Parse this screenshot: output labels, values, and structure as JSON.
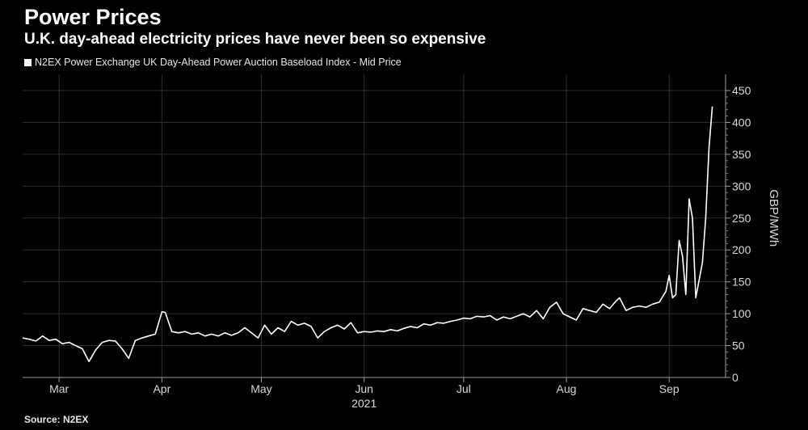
{
  "header": {
    "title": "Power Prices",
    "subtitle": "U.K. day-ahead electricity prices have never been so expensive"
  },
  "source": "Source: N2EX",
  "chart_data": {
    "type": "line",
    "legend": "N2EX Power Exchange UK Day-Ahead Power Auction Baseload Index - Mid Price",
    "legend_position": "top-left",
    "ylabel": "GBP/MWh",
    "year_label": "2021",
    "ylim": [
      0,
      450
    ],
    "yticks": [
      0,
      50,
      100,
      150,
      200,
      250,
      300,
      350,
      400,
      450
    ],
    "y_axis_side": "right",
    "grid": true,
    "xlim": [
      "2021-02-18",
      "2021-09-18"
    ],
    "month_ticks": [
      {
        "label": "Mar",
        "date": "2021-03-01"
      },
      {
        "label": "Apr",
        "date": "2021-04-01"
      },
      {
        "label": "May",
        "date": "2021-05-01"
      },
      {
        "label": "Jun",
        "date": "2021-06-01"
      },
      {
        "label": "Jul",
        "date": "2021-07-01"
      },
      {
        "label": "Aug",
        "date": "2021-08-01"
      },
      {
        "label": "Sep",
        "date": "2021-09-01"
      }
    ],
    "series": [
      {
        "name": "N2EX Power Exchange UK Day-Ahead Power Auction Baseload Index - Mid Price",
        "color": "#ffffff",
        "points": [
          [
            "2021-02-18",
            62
          ],
          [
            "2021-02-20",
            60
          ],
          [
            "2021-02-22",
            57
          ],
          [
            "2021-02-24",
            65
          ],
          [
            "2021-02-26",
            58
          ],
          [
            "2021-02-28",
            60
          ],
          [
            "2021-03-02",
            53
          ],
          [
            "2021-03-04",
            55
          ],
          [
            "2021-03-06",
            50
          ],
          [
            "2021-03-08",
            45
          ],
          [
            "2021-03-10",
            25
          ],
          [
            "2021-03-12",
            43
          ],
          [
            "2021-03-14",
            55
          ],
          [
            "2021-03-16",
            58
          ],
          [
            "2021-03-18",
            57
          ],
          [
            "2021-03-20",
            45
          ],
          [
            "2021-03-22",
            30
          ],
          [
            "2021-03-24",
            58
          ],
          [
            "2021-03-26",
            62
          ],
          [
            "2021-03-28",
            65
          ],
          [
            "2021-03-30",
            68
          ],
          [
            "2021-04-01",
            103
          ],
          [
            "2021-04-02",
            102
          ],
          [
            "2021-04-04",
            72
          ],
          [
            "2021-04-06",
            70
          ],
          [
            "2021-04-08",
            72
          ],
          [
            "2021-04-10",
            68
          ],
          [
            "2021-04-12",
            70
          ],
          [
            "2021-04-14",
            65
          ],
          [
            "2021-04-16",
            68
          ],
          [
            "2021-04-18",
            65
          ],
          [
            "2021-04-20",
            70
          ],
          [
            "2021-04-22",
            66
          ],
          [
            "2021-04-24",
            70
          ],
          [
            "2021-04-26",
            78
          ],
          [
            "2021-04-28",
            70
          ],
          [
            "2021-04-30",
            62
          ],
          [
            "2021-05-02",
            82
          ],
          [
            "2021-05-04",
            68
          ],
          [
            "2021-05-06",
            78
          ],
          [
            "2021-05-08",
            72
          ],
          [
            "2021-05-10",
            88
          ],
          [
            "2021-05-12",
            82
          ],
          [
            "2021-05-14",
            85
          ],
          [
            "2021-05-16",
            80
          ],
          [
            "2021-05-18",
            62
          ],
          [
            "2021-05-20",
            72
          ],
          [
            "2021-05-22",
            78
          ],
          [
            "2021-05-24",
            82
          ],
          [
            "2021-05-26",
            76
          ],
          [
            "2021-05-28",
            86
          ],
          [
            "2021-05-30",
            70
          ],
          [
            "2021-06-01",
            72
          ],
          [
            "2021-06-03",
            71
          ],
          [
            "2021-06-05",
            73
          ],
          [
            "2021-06-07",
            72
          ],
          [
            "2021-06-09",
            75
          ],
          [
            "2021-06-11",
            73
          ],
          [
            "2021-06-13",
            77
          ],
          [
            "2021-06-15",
            80
          ],
          [
            "2021-06-17",
            78
          ],
          [
            "2021-06-19",
            84
          ],
          [
            "2021-06-21",
            82
          ],
          [
            "2021-06-23",
            86
          ],
          [
            "2021-06-25",
            85
          ],
          [
            "2021-06-27",
            88
          ],
          [
            "2021-06-29",
            90
          ],
          [
            "2021-07-01",
            93
          ],
          [
            "2021-07-03",
            92
          ],
          [
            "2021-07-05",
            96
          ],
          [
            "2021-07-07",
            95
          ],
          [
            "2021-07-09",
            97
          ],
          [
            "2021-07-11",
            90
          ],
          [
            "2021-07-13",
            95
          ],
          [
            "2021-07-15",
            92
          ],
          [
            "2021-07-17",
            96
          ],
          [
            "2021-07-19",
            100
          ],
          [
            "2021-07-21",
            95
          ],
          [
            "2021-07-23",
            105
          ],
          [
            "2021-07-25",
            92
          ],
          [
            "2021-07-27",
            110
          ],
          [
            "2021-07-29",
            118
          ],
          [
            "2021-07-31",
            100
          ],
          [
            "2021-08-02",
            95
          ],
          [
            "2021-08-04",
            90
          ],
          [
            "2021-08-06",
            108
          ],
          [
            "2021-08-08",
            105
          ],
          [
            "2021-08-10",
            102
          ],
          [
            "2021-08-12",
            115
          ],
          [
            "2021-08-14",
            108
          ],
          [
            "2021-08-16",
            120
          ],
          [
            "2021-08-17",
            125
          ],
          [
            "2021-08-19",
            105
          ],
          [
            "2021-08-21",
            110
          ],
          [
            "2021-08-23",
            112
          ],
          [
            "2021-08-25",
            110
          ],
          [
            "2021-08-27",
            115
          ],
          [
            "2021-08-29",
            118
          ],
          [
            "2021-08-31",
            135
          ],
          [
            "2021-09-01",
            160
          ],
          [
            "2021-09-02",
            125
          ],
          [
            "2021-09-03",
            130
          ],
          [
            "2021-09-04",
            215
          ],
          [
            "2021-09-05",
            190
          ],
          [
            "2021-09-06",
            130
          ],
          [
            "2021-09-07",
            280
          ],
          [
            "2021-09-08",
            250
          ],
          [
            "2021-09-09",
            125
          ],
          [
            "2021-09-11",
            180
          ],
          [
            "2021-09-12",
            250
          ],
          [
            "2021-09-13",
            360
          ],
          [
            "2021-09-14",
            425
          ]
        ]
      }
    ]
  }
}
